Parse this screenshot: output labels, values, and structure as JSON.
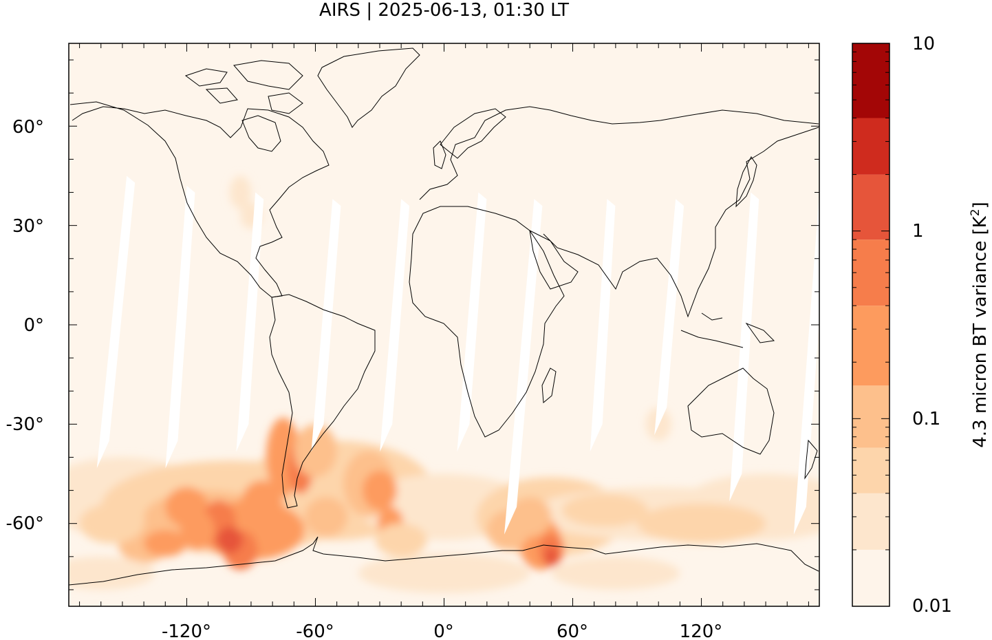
{
  "title": "AIRS | 2025-06-13, 01:30 LT",
  "map": {
    "projection": "plate carree",
    "lon_range": [
      -175,
      175
    ],
    "lat_range": [
      -85,
      85
    ],
    "x_ticks": [
      {
        "value": -120,
        "label": "-120°"
      },
      {
        "value": -60,
        "label": "-60°"
      },
      {
        "value": 0,
        "label": "0°"
      },
      {
        "value": 60,
        "label": "60°"
      },
      {
        "value": 120,
        "label": "120°"
      }
    ],
    "y_ticks": [
      {
        "value": 60,
        "label": "60°"
      },
      {
        "value": 30,
        "label": "30°"
      },
      {
        "value": 0,
        "label": "0°"
      },
      {
        "value": -30,
        "label": "-30°"
      },
      {
        "value": -60,
        "label": "-60°"
      }
    ],
    "background_color": "#fef5eb",
    "coastline_color": "#000000"
  },
  "colorbar": {
    "label": "4.3 micron BT variance [K",
    "label_sup": "2",
    "label_end": "]",
    "scale": "log",
    "range": [
      0.01,
      10
    ],
    "tick_labels": [
      {
        "value": 10,
        "label": "10"
      },
      {
        "value": 1,
        "label": "1"
      },
      {
        "value": 0.1,
        "label": "0.1"
      },
      {
        "value": 0.01,
        "label": "0.01"
      }
    ],
    "levels": [
      {
        "color": "#fef4ea"
      },
      {
        "color": "#fde6cd"
      },
      {
        "color": "#fdd5ab"
      },
      {
        "color": "#fdc08c"
      },
      {
        "color": "#fd9b5e"
      },
      {
        "color": "#f67d4b"
      },
      {
        "color": "#e6553a"
      },
      {
        "color": "#cf2b1e"
      },
      {
        "color": "#a30606"
      }
    ]
  }
}
